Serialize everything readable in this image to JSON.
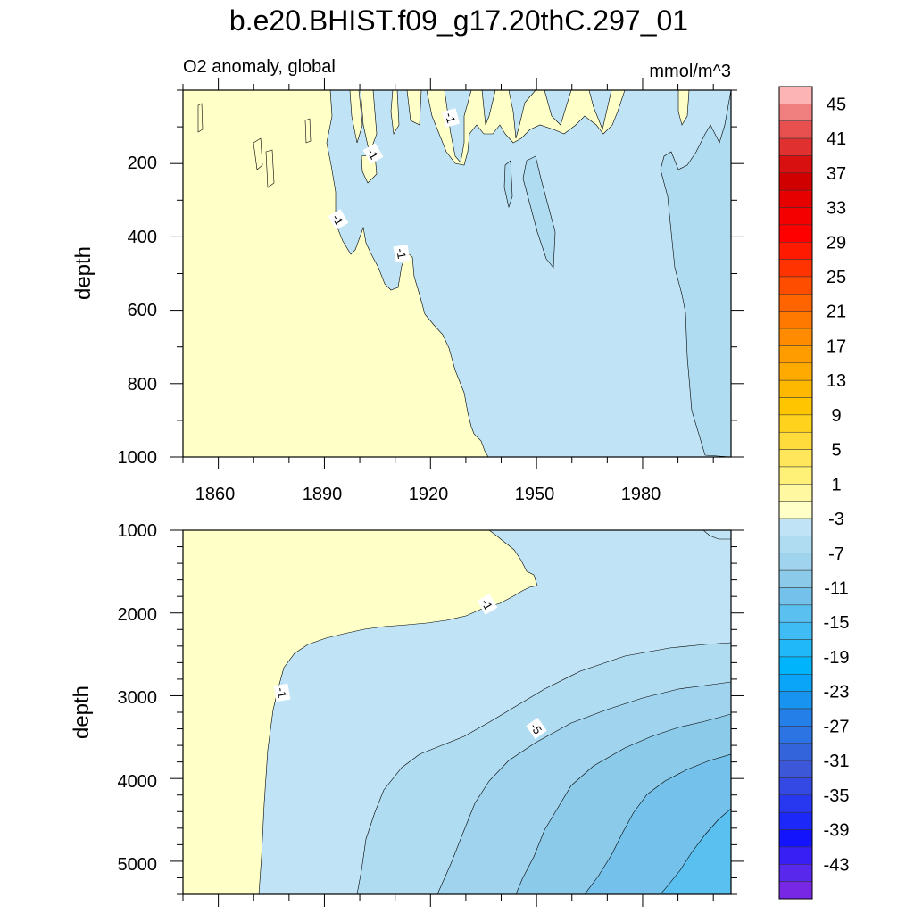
{
  "figure": {
    "title": "b.e20.BHIST.f09_g17.20thC.297_01",
    "subtitle_left": "O2 anomaly, global",
    "subtitle_right": "mmol/m^3"
  },
  "chart_data": [
    {
      "type": "heatmap",
      "xlabel": "",
      "ylabel": "depth",
      "xlim": [
        1850,
        2005
      ],
      "ylim": [
        1000,
        0
      ],
      "x_ticks": [
        "1860",
        "1890",
        "1920",
        "1950",
        "1980"
      ],
      "y_ticks": [
        "200",
        "400",
        "600",
        "800",
        "1000"
      ],
      "contour_labels": [
        "-1",
        "-1",
        "-1",
        "-1"
      ]
    },
    {
      "type": "heatmap",
      "xlabel": "",
      "ylabel": "depth",
      "xlim": [
        1850,
        2005
      ],
      "ylim": [
        5400,
        1000
      ],
      "y_ticks": [
        "1000",
        "2000",
        "3000",
        "4000",
        "5000"
      ],
      "contour_labels": [
        "-1",
        "-1",
        "-5"
      ]
    }
  ],
  "colorbar": {
    "labels": [
      "45",
      "41",
      "37",
      "33",
      "29",
      "25",
      "21",
      "17",
      "13",
      "9",
      "5",
      "1",
      "-3",
      "-7",
      "-11",
      "-15",
      "-19",
      "-23",
      "-27",
      "-31",
      "-35",
      "-39",
      "-43"
    ],
    "colors": [
      "#fcb4b4",
      "#f08080",
      "#e85050",
      "#e03030",
      "#d81010",
      "#d00000",
      "#e60000",
      "#f50000",
      "#ff0000",
      "#ff1a00",
      "#ff3300",
      "#ff4d00",
      "#ff6400",
      "#ff7800",
      "#ff8c00",
      "#ff9c00",
      "#ffaa00",
      "#ffb800",
      "#ffc600",
      "#ffd21e",
      "#ffdc3c",
      "#ffe65a",
      "#fff078",
      "#fff8a0",
      "#ffffc8",
      "#c0e4f6",
      "#b0dcf2",
      "#a0d4ee",
      "#8ccaea",
      "#74c2ec",
      "#5ac0f0",
      "#40bcf4",
      "#20b8f8",
      "#00b4fc",
      "#0aa4f8",
      "#1894f0",
      "#2480e8",
      "#2c74e4",
      "#3464dc",
      "#3c58d8",
      "#3448e4",
      "#2838f0",
      "#1c28f8",
      "#1414fc",
      "#3820f4",
      "#5828ec",
      "#7828e4"
    ]
  }
}
